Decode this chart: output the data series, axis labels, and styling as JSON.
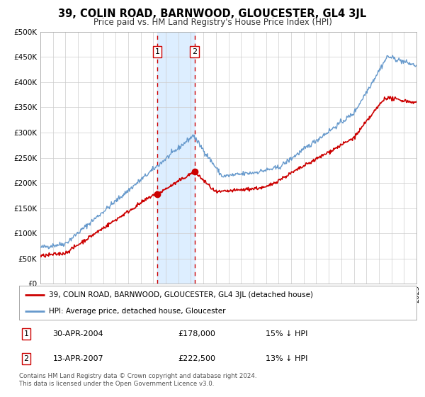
{
  "title": "39, COLIN ROAD, BARNWOOD, GLOUCESTER, GL4 3JL",
  "subtitle": "Price paid vs. HM Land Registry's House Price Index (HPI)",
  "legend_line1": "39, COLIN ROAD, BARNWOOD, GLOUCESTER, GL4 3JL (detached house)",
  "legend_line2": "HPI: Average price, detached house, Gloucester",
  "transaction1_date": "30-APR-2004",
  "transaction1_price": "£178,000",
  "transaction1_hpi": "15% ↓ HPI",
  "transaction2_date": "13-APR-2007",
  "transaction2_price": "£222,500",
  "transaction2_hpi": "13% ↓ HPI",
  "footer": "Contains HM Land Registry data © Crown copyright and database right 2024.\nThis data is licensed under the Open Government Licence v3.0.",
  "property_color": "#cc0000",
  "hpi_color": "#6699cc",
  "shading_color": "#ddeeff",
  "grid_color": "#cccccc",
  "background_color": "#ffffff",
  "ylim": [
    0,
    500000
  ],
  "yticks": [
    0,
    50000,
    100000,
    150000,
    200000,
    250000,
    300000,
    350000,
    400000,
    450000,
    500000
  ],
  "transaction1_x": 2004.33,
  "transaction1_y": 178000,
  "transaction2_x": 2007.29,
  "transaction2_y": 222500,
  "xmin": 1995,
  "xmax": 2025
}
